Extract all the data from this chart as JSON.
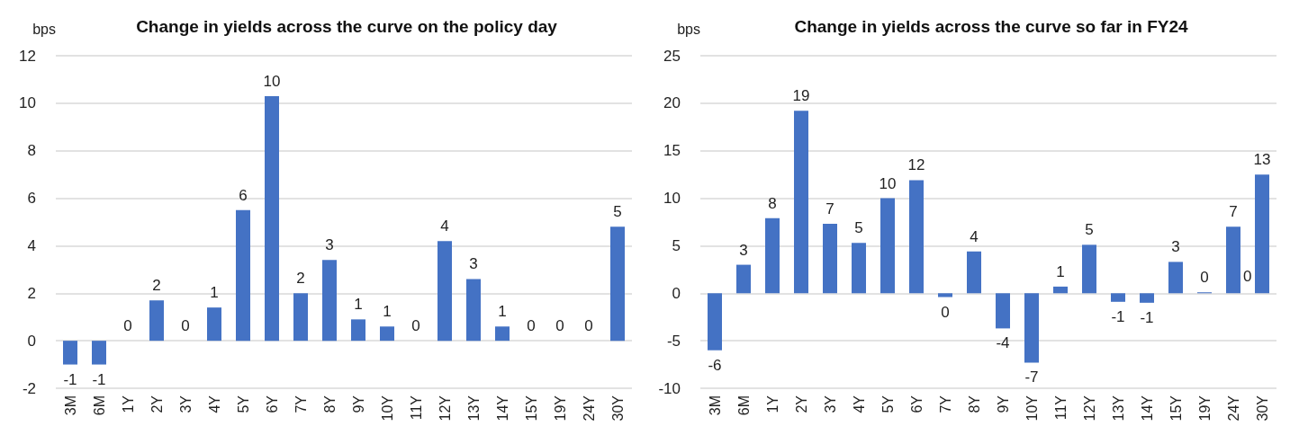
{
  "chart_data": [
    {
      "type": "bar",
      "title": "Change in yields across the curve on the policy day",
      "ylabel": "bps",
      "categories": [
        "3M",
        "6M",
        "1Y",
        "2Y",
        "3Y",
        "4Y",
        "5Y",
        "6Y",
        "7Y",
        "8Y",
        "9Y",
        "10Y",
        "11Y",
        "12Y",
        "13Y",
        "14Y",
        "15Y",
        "19Y",
        "24Y",
        "30Y"
      ],
      "series": [
        {
          "color": "#4472c4",
          "values": [
            -1,
            -1,
            0,
            1.7,
            0,
            1.4,
            5.5,
            10.3,
            2.0,
            3.4,
            0.9,
            0.6,
            0,
            4.2,
            2.6,
            0.6,
            0,
            0,
            0,
            4.8
          ],
          "value_labels": [
            "-1",
            "-1",
            "0",
            "2",
            "0",
            "1",
            "6",
            "10",
            "2",
            "3",
            "1",
            "1",
            "0",
            "4",
            "3",
            "1",
            "0",
            "0",
            "0",
            "5"
          ]
        }
      ],
      "ylim": [
        -2,
        12
      ],
      "yticks": [
        -2,
        0,
        2,
        4,
        6,
        8,
        10,
        12
      ],
      "grid": "y"
    },
    {
      "type": "bar",
      "title": "Change in yields across the curve so far in FY24",
      "ylabel": "bps",
      "categories": [
        "3M",
        "6M",
        "1Y",
        "2Y",
        "3Y",
        "4Y",
        "5Y",
        "6Y",
        "7Y",
        "8Y",
        "9Y",
        "10Y",
        "11Y",
        "12Y",
        "13Y",
        "14Y",
        "15Y",
        "19Y",
        "24Y",
        "30Y"
      ],
      "series": [
        {
          "color": "#4472c4",
          "values": [
            -6,
            3,
            7.9,
            19.2,
            7.3,
            5.3,
            10,
            11.9,
            -0.4,
            4.4,
            -3.7,
            -7.3,
            0.7,
            5.1,
            -0.9,
            -1.0,
            3.3,
            0.1,
            7,
            12.5
          ],
          "value_labels": [
            "-6",
            "3",
            "8",
            "19",
            "7",
            "5",
            "10",
            "12",
            "0",
            "4",
            "-4",
            "-7",
            "1",
            "5",
            "-1",
            "-1",
            "3",
            "0",
            "7",
            "13"
          ]
        }
      ],
      "annotations": [
        "0"
      ],
      "ylim": [
        -10,
        25
      ],
      "yticks": [
        -10,
        -5,
        0,
        5,
        10,
        15,
        20,
        25
      ],
      "grid": "y"
    }
  ]
}
